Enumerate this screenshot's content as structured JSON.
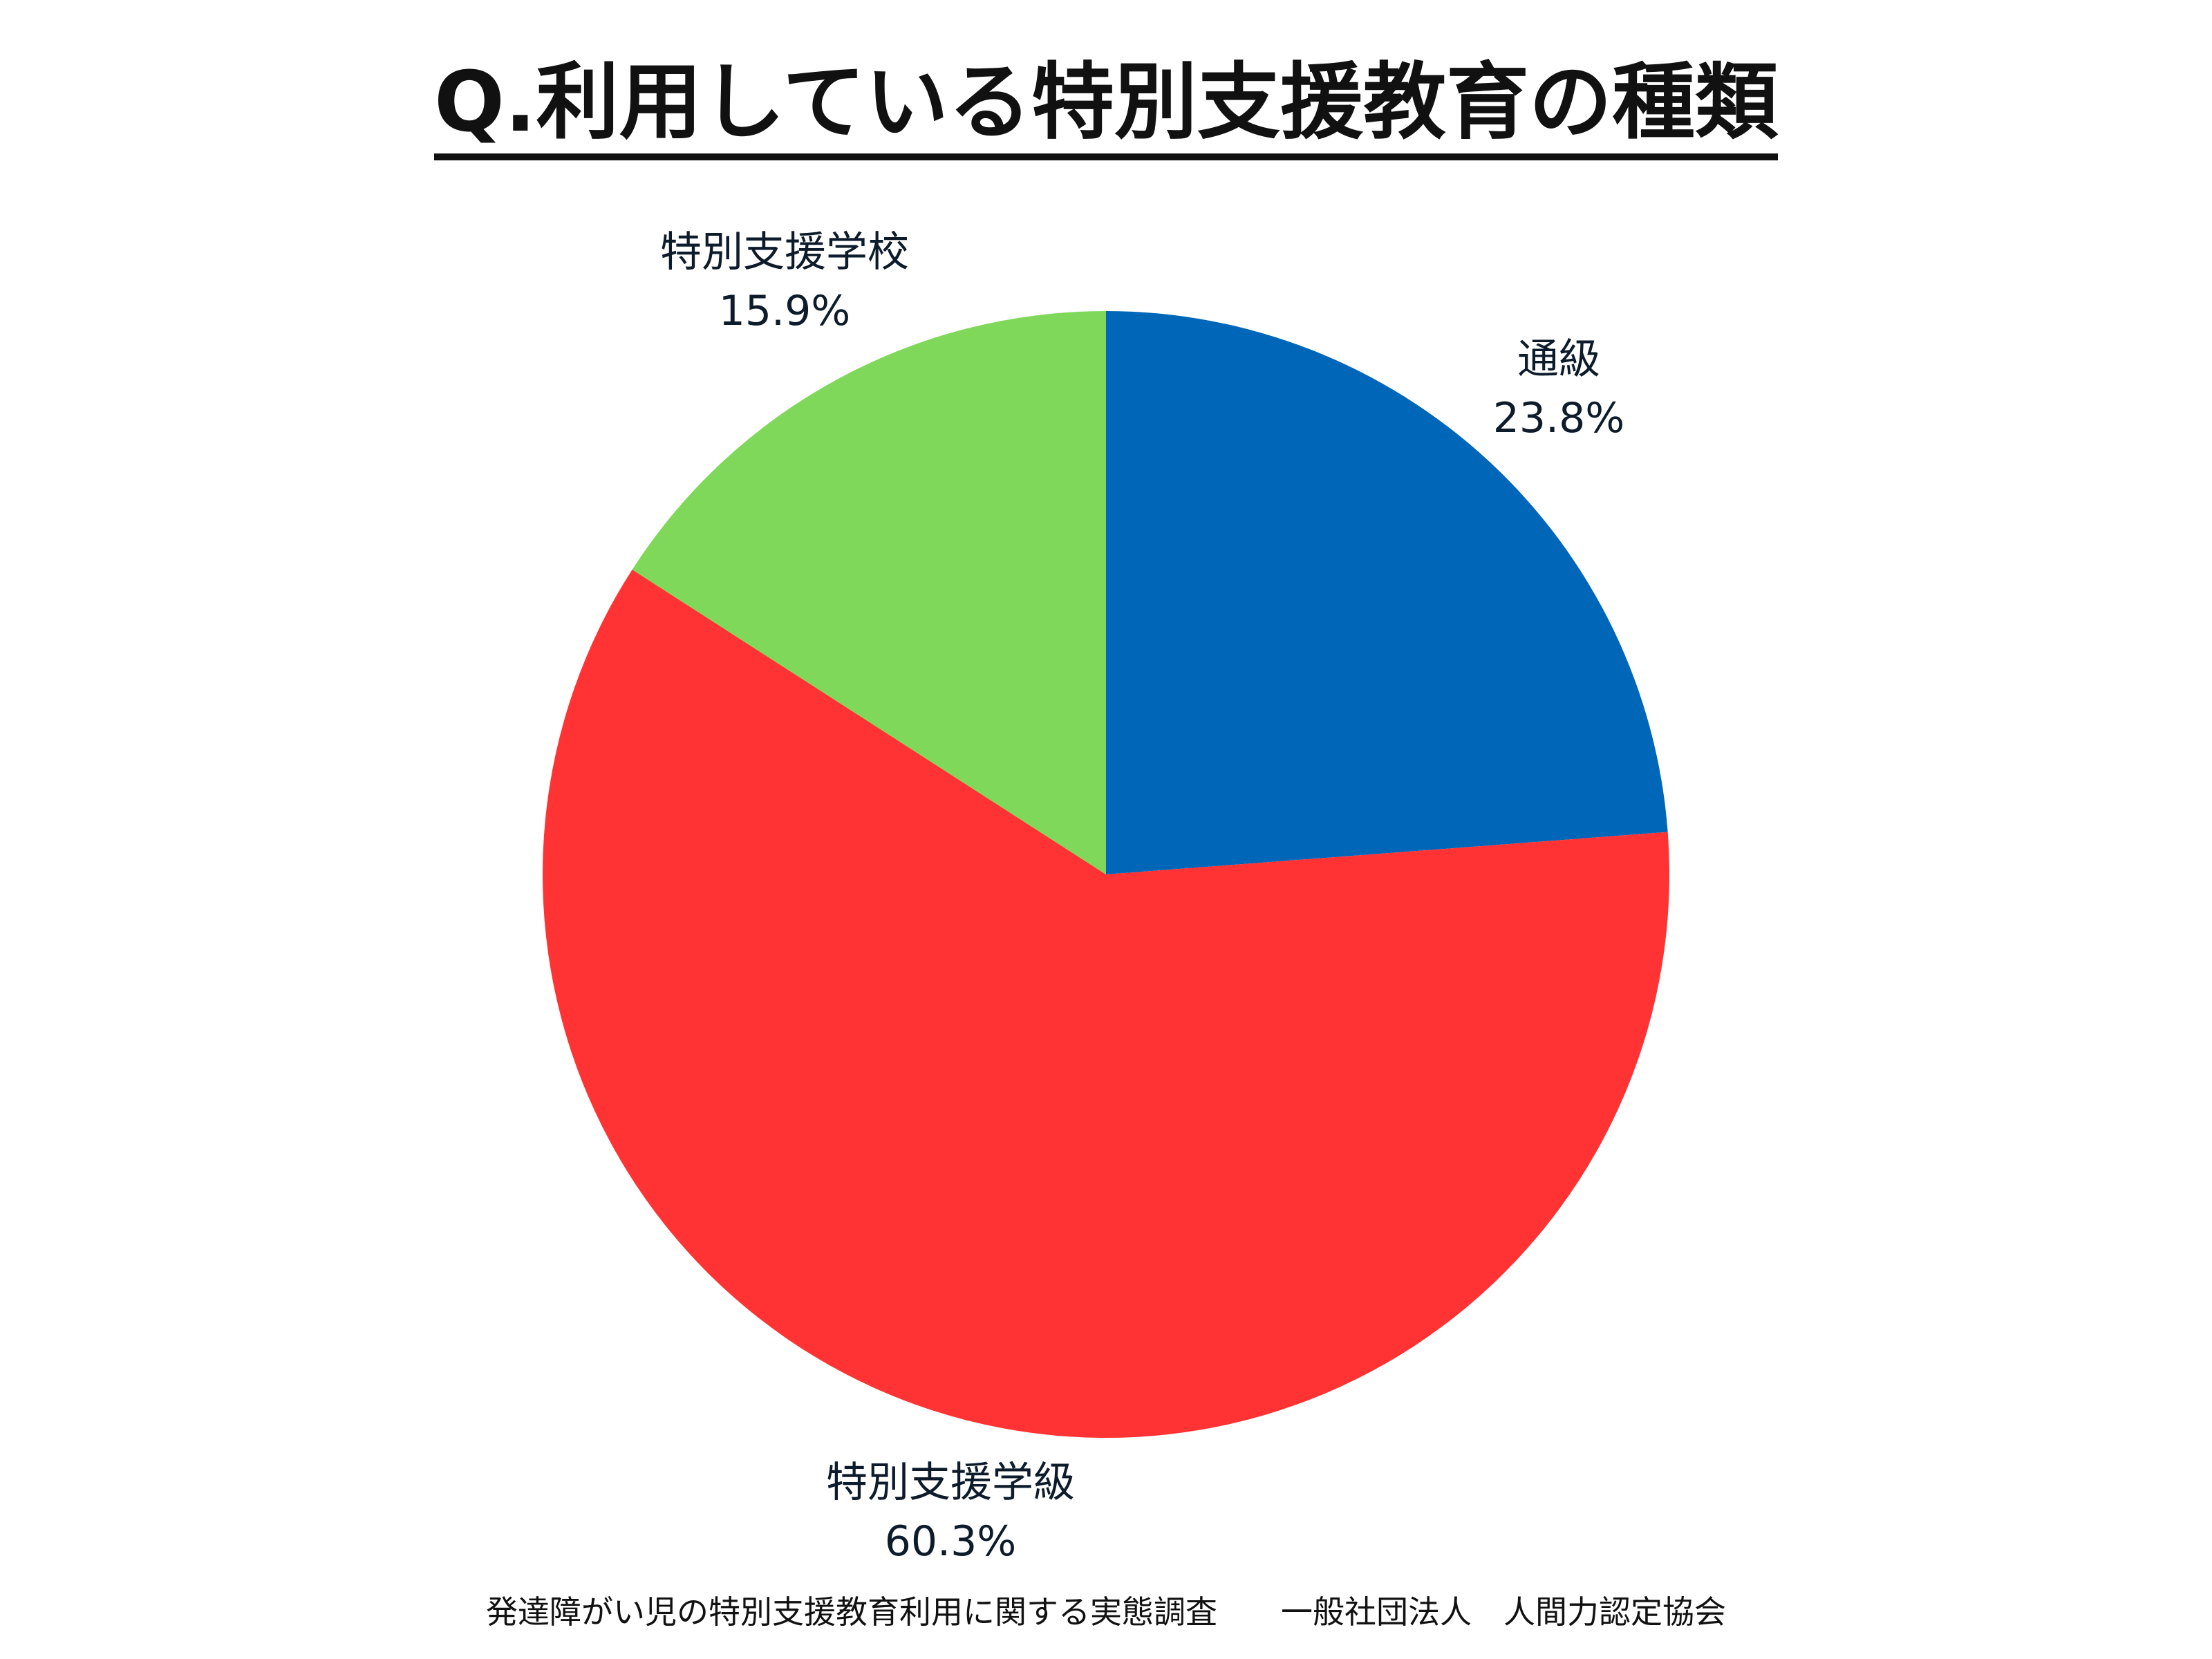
{
  "chart_data": {
    "type": "pie",
    "title": "Q.利用している特別支援教育の種類",
    "slices": [
      {
        "name": "通級",
        "value": 23.8,
        "value_label": "23.8%",
        "color": "#0066b8"
      },
      {
        "name": "特別支援学級",
        "value": 60.3,
        "value_label": "60.3%",
        "color": "#ff3333"
      },
      {
        "name": "特別支援学校",
        "value": 15.9,
        "value_label": "15.9%",
        "color": "#80d85a"
      }
    ],
    "start_angle": "12 o'clock",
    "direction": "clockwise",
    "legend": "none",
    "labels": "outside"
  },
  "footer": {
    "caption": "発達障がい児の特別支援教育利用に関する実態調査　　一般社団法人　人間力認定協会"
  }
}
